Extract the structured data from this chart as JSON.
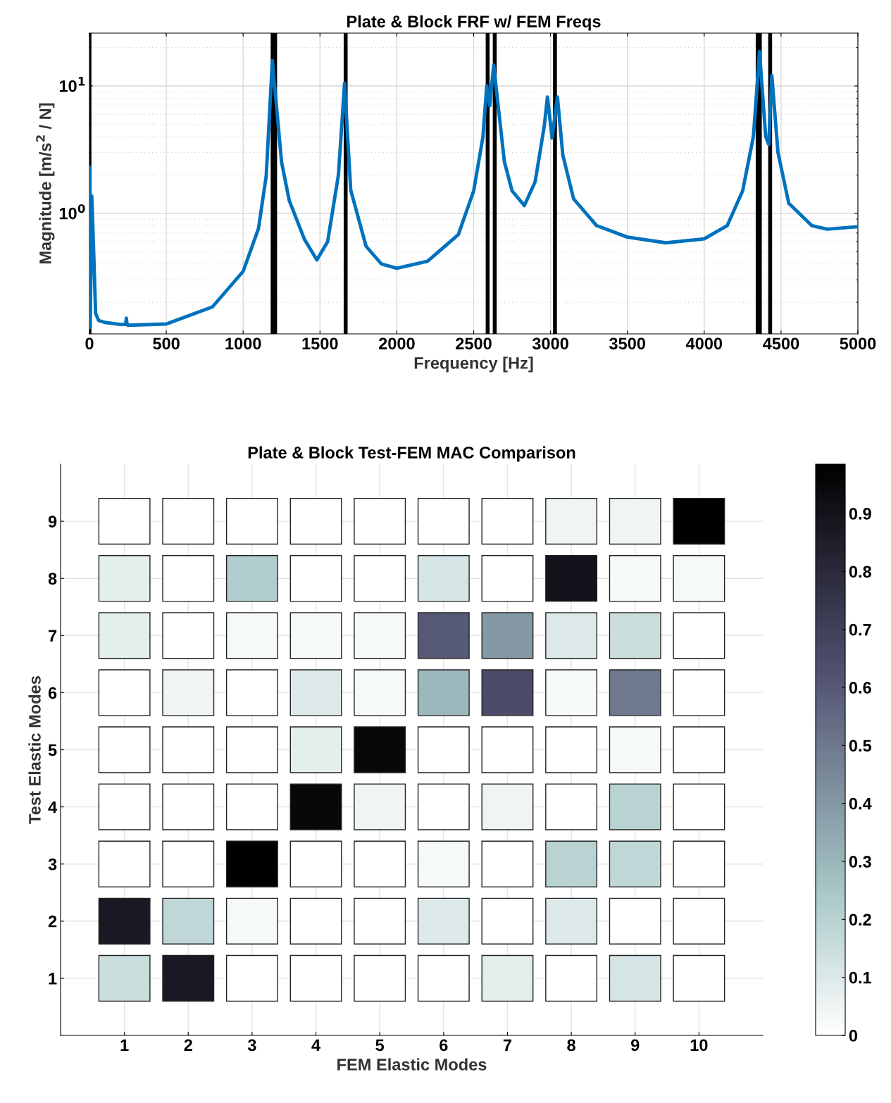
{
  "chart_data": [
    {
      "type": "line",
      "title": "Plate & Block FRF w/ FEM Freqs",
      "xlabel": "Frequency [Hz]",
      "ylabel": "Magnitude [m/s$^{2}$ / N]",
      "log": "y",
      "grid": true,
      "xlim": [
        0,
        5000
      ],
      "ylim": [
        0.113,
        26
      ],
      "xticks": [
        0,
        500,
        1000,
        1500,
        2000,
        2500,
        3000,
        3500,
        4000,
        4500,
        5000
      ],
      "yticks": [
        {
          "value": 1,
          "label": "10$^{0}$"
        },
        {
          "value": 10,
          "label": "10$^{1}$"
        }
      ],
      "series": [
        {
          "color": "#0072bd",
          "x": [
            0,
            5,
            15,
            25,
            40,
            60,
            100,
            200,
            235,
            240,
            245,
            250,
            500,
            800,
            1000,
            1100,
            1150,
            1190,
            1200,
            1250,
            1300,
            1400,
            1480,
            1550,
            1620,
            1660,
            1700,
            1800,
            1900,
            2000,
            2200,
            2400,
            2500,
            2560,
            2585,
            2605,
            2630,
            2700,
            2750,
            2830,
            2900,
            2960,
            2980,
            3010,
            3045,
            3080,
            3150,
            3300,
            3500,
            3750,
            4000,
            4150,
            4250,
            4320,
            4360,
            4400,
            4420,
            4440,
            4480,
            4550,
            4700,
            4800,
            5000
          ],
          "values": [
            2.3,
            0.127,
            1.37,
            0.62,
            0.164,
            0.144,
            0.139,
            0.134,
            0.134,
            0.15,
            0.134,
            0.132,
            0.135,
            0.184,
            0.35,
            0.76,
            1.96,
            15.8,
            11.6,
            2.53,
            1.26,
            0.62,
            0.43,
            0.6,
            2.0,
            10.5,
            1.52,
            0.55,
            0.4,
            0.37,
            0.42,
            0.68,
            1.5,
            3.95,
            10,
            7,
            14.6,
            2.53,
            1.5,
            1.15,
            1.77,
            4.9,
            8.2,
            3.9,
            8.2,
            2.87,
            1.3,
            0.8,
            0.65,
            0.586,
            0.63,
            0.8,
            1.5,
            4,
            18.6,
            4,
            3.47,
            12.1,
            3,
            1.2,
            0.8,
            0.75,
            0.785
          ]
        }
      ],
      "ref_lines": [
        {
          "axis": "x",
          "value": 0,
          "color": "#000000"
        },
        {
          "axis": "x",
          "value": 1192,
          "color": "#000000"
        },
        {
          "axis": "x",
          "value": 1208,
          "color": "#000000"
        },
        {
          "axis": "x",
          "value": 1667,
          "color": "#000000"
        },
        {
          "axis": "x",
          "value": 2591,
          "color": "#000000"
        },
        {
          "axis": "x",
          "value": 2637,
          "color": "#000000"
        },
        {
          "axis": "x",
          "value": 3029,
          "color": "#000000"
        },
        {
          "axis": "x",
          "value": 4348,
          "color": "#000000"
        },
        {
          "axis": "x",
          "value": 4362,
          "color": "#000000"
        },
        {
          "axis": "x",
          "value": 4429,
          "color": "#000000"
        }
      ]
    },
    {
      "type": "heatmap",
      "title": "Plate & Block Test-FEM MAC Comparison",
      "xlabel": "FEM Elastic Modes",
      "ylabel": "Test Elastic Modes",
      "categories": [
        "1",
        "2",
        "3",
        "4",
        "5",
        "6",
        "7",
        "8",
        "9",
        "10"
      ],
      "y_categories": [
        "9",
        "8",
        "7",
        "6",
        "5",
        "4",
        "3",
        "2",
        "1"
      ],
      "grid": true,
      "clim": [
        0,
        0.985
      ],
      "cticks": [
        0,
        0.1,
        0.2,
        0.3,
        0.4,
        0.5,
        0.6,
        0.7,
        0.8,
        0.9
      ],
      "cells": [
        [
          0,
          0,
          0,
          0,
          0,
          0,
          0,
          0.05,
          0.05,
          0.99
        ],
        [
          0.08,
          0,
          0.22,
          0,
          0,
          0.12,
          0,
          0.9,
          0.03,
          0.03
        ],
        [
          0.08,
          0,
          0.03,
          0.03,
          0.03,
          0.6,
          0.4,
          0.1,
          0.15,
          0
        ],
        [
          0,
          0.05,
          0,
          0.1,
          0.03,
          0.3,
          0.65,
          0.03,
          0.5,
          0
        ],
        [
          0,
          0,
          0,
          0.08,
          0.95,
          0,
          0,
          0,
          0.03,
          0
        ],
        [
          0,
          0,
          0,
          0.95,
          0.05,
          0,
          0.05,
          0,
          0.2,
          0
        ],
        [
          0,
          0,
          0.99,
          0,
          0,
          0.03,
          0,
          0.2,
          0.18,
          0
        ],
        [
          0.87,
          0.18,
          0.03,
          0,
          0,
          0.1,
          0,
          0.1,
          0,
          0
        ],
        [
          0.15,
          0.87,
          0,
          0,
          0,
          0,
          0.08,
          0,
          0.12,
          0
        ]
      ]
    }
  ]
}
